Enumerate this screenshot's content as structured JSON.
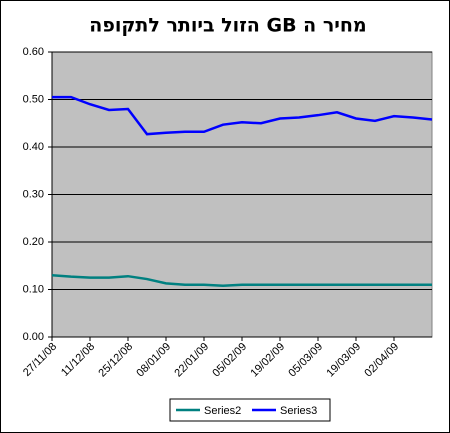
{
  "chart_data": {
    "type": "line",
    "title": "מחיר ה GB הזול ביותר לתקופה",
    "categories": [
      "27/11/08",
      null,
      "11/12/08",
      null,
      "25/12/08",
      null,
      "08/01/09",
      null,
      "22/01/09",
      null,
      "05/02/09",
      null,
      "19/02/09",
      null,
      "05/03/09",
      null,
      "19/03/09",
      null,
      "02/04/09",
      null,
      null
    ],
    "series": [
      {
        "name": "Series2",
        "color": "#008080",
        "values": [
          0.13,
          0.127,
          0.125,
          0.125,
          0.128,
          0.122,
          0.113,
          0.11,
          0.11,
          0.108,
          0.11,
          0.11,
          0.11,
          0.11,
          0.11,
          0.11,
          0.11,
          0.11,
          0.11,
          0.11,
          0.11
        ]
      },
      {
        "name": "Series3",
        "color": "#0000ff",
        "values": [
          0.505,
          0.505,
          0.49,
          0.478,
          0.48,
          0.427,
          0.43,
          0.432,
          0.432,
          0.447,
          0.452,
          0.45,
          0.46,
          0.462,
          0.467,
          0.473,
          0.46,
          0.455,
          0.465,
          0.462,
          0.458
        ]
      }
    ],
    "ylim": [
      0,
      0.6
    ],
    "yticks": [
      {
        "value": 0,
        "label": "0.00"
      },
      {
        "value": 0.1,
        "label": "0.10"
      },
      {
        "value": 0.2,
        "label": "0.20"
      },
      {
        "value": 0.3,
        "label": "0.30"
      },
      {
        "value": 0.4,
        "label": "0.40"
      },
      {
        "value": 0.5,
        "label": "0.50"
      },
      {
        "value": 0.6,
        "label": "0.60"
      }
    ],
    "grid": true,
    "legend": "bottom",
    "plot_background": "#c0c0c0"
  }
}
